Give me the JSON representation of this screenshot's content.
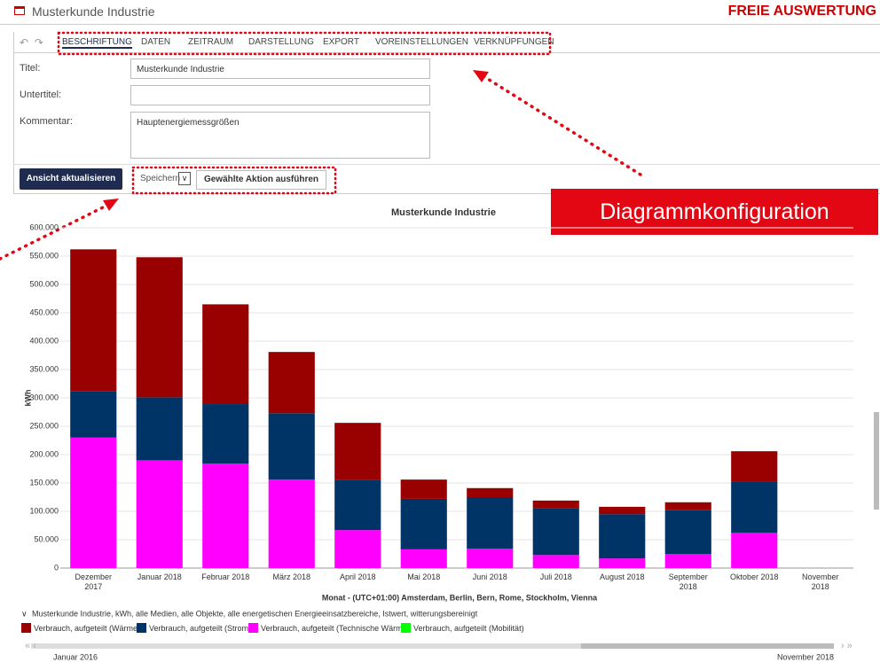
{
  "header": {
    "title": "Musterkunde Industrie",
    "badge": "FREIE AUSWERTUNG"
  },
  "tabs": [
    "BESCHRIFTUNG",
    "DATEN",
    "ZEITRAUM",
    "DARSTELLUNG",
    "EXPORT",
    "VOREINSTELLUNGEN",
    "VERKNÜPFUNGEN"
  ],
  "form": {
    "fields": [
      {
        "label": "Titel:",
        "value": "Musterkunde Industrie"
      },
      {
        "label": "Untertitel:"
      },
      {
        "label": "Kommentar:",
        "value": "Hauptenergiemessgrößen"
      }
    ]
  },
  "buttons": {
    "update": "Ansicht aktualisieren",
    "select": "Speichern",
    "action": "Gewählte Aktion ausführen"
  },
  "callout": "Diagrammkonfiguration",
  "chart_data": {
    "type": "bar",
    "stacked": true,
    "title": "Musterkunde Industrie",
    "ylabel": "kWh",
    "xlabel": "Monat - (UTC+01:00) Amsterdam, Berlin, Bern, Rome, Stockholm, Vienna",
    "legend_caption": "Musterkunde Industrie, kWh, alle Medien, alle Objekte, alle energetischen Energieeinsatzbereiche, Istwert, witterungsbereinigt",
    "categories": [
      "Dezember 2017",
      "Januar 2018",
      "Februar 2018",
      "März 2018",
      "April 2018",
      "Mai 2018",
      "Juni 2018",
      "Juli 2018",
      "August 2018",
      "September 2018",
      "Oktober 2018",
      "November 2018"
    ],
    "series": [
      {
        "name": "Verbrauch, aufgeteilt (Technische Wärme)",
        "color": "#ff00ff",
        "values": [
          230000,
          190000,
          184000,
          156000,
          67000,
          33000,
          34000,
          23000,
          17000,
          25000,
          62000,
          null
        ]
      },
      {
        "name": "Verbrauch, aufgeteilt (Strom)",
        "color": "#003366",
        "values": [
          82000,
          111000,
          105000,
          117000,
          89000,
          89000,
          91000,
          83000,
          78000,
          77000,
          91000,
          null
        ]
      },
      {
        "name": "Verbrauch, aufgeteilt (Wärme)",
        "color": "#990000",
        "values": [
          250000,
          247000,
          176000,
          108000,
          100000,
          34000,
          16000,
          13000,
          13000,
          14000,
          53000,
          null
        ]
      },
      {
        "name": "Verbrauch, aufgeteilt (Mobilität)",
        "color": "#00ff00",
        "values": [
          0,
          0,
          0,
          0,
          0,
          0,
          0,
          0,
          0,
          0,
          0,
          null
        ]
      }
    ],
    "legend_order": [
      2,
      1,
      0,
      3
    ],
    "ylim": [
      0,
      600000
    ],
    "yticks": [
      0,
      {
        "value": 50000,
        "label": "50.000"
      },
      {
        "value": 100000,
        "label": "100.000"
      },
      {
        "value": 150000,
        "label": "150.000"
      },
      {
        "value": 200000,
        "label": "200.000"
      },
      {
        "value": 250000,
        "label": "250.000"
      },
      {
        "value": 300000,
        "label": "300.000"
      },
      {
        "value": 350000,
        "label": "350.000"
      },
      {
        "value": 400000,
        "label": "400.000"
      },
      {
        "value": 450000,
        "label": "450.000"
      },
      {
        "value": 500000,
        "label": "500.000"
      },
      {
        "value": 550000,
        "label": "550.000"
      },
      {
        "value": 600000,
        "label": "600.000"
      }
    ],
    "grid": true
  },
  "range": {
    "start": "Januar 2016",
    "end": "November 2018"
  }
}
